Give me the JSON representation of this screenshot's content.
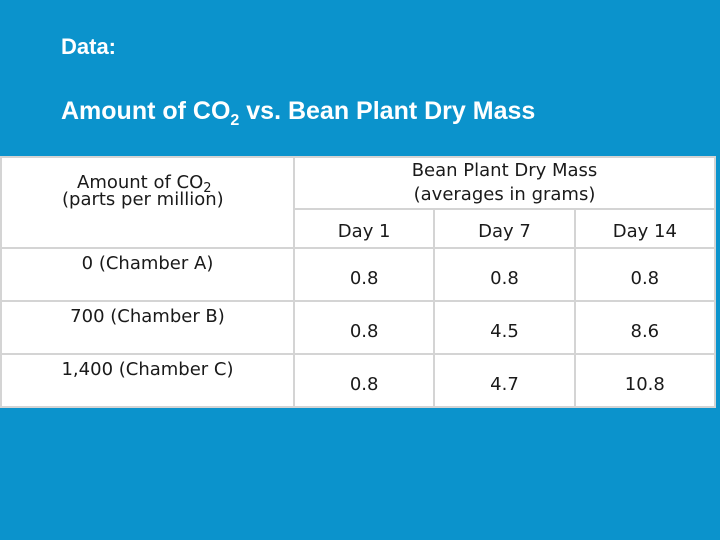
{
  "slide": {
    "label": "Data:",
    "title_prefix": "Amount of CO",
    "title_sub": "2",
    "title_suffix": " vs. Bean Plant Dry Mass"
  },
  "table": {
    "left_header_line1_prefix": "Amount of CO",
    "left_header_line1_sub": "2",
    "left_header_line2": "(parts per million)",
    "right_header_line1": "Bean Plant Dry Mass",
    "right_header_line2": "(averages in grams)",
    "days": [
      "Day 1",
      "Day 7",
      "Day 14"
    ],
    "rows": [
      {
        "label": "0 (Chamber A)",
        "values": [
          "0.8",
          "0.8",
          "0.8"
        ]
      },
      {
        "label": "700 (Chamber B)",
        "values": [
          "0.8",
          "4.5",
          "8.6"
        ]
      },
      {
        "label": "1,400 (Chamber C)",
        "values": [
          "0.8",
          "4.7",
          "10.8"
        ]
      }
    ]
  },
  "colors": {
    "background": "#0b93cc",
    "table_background": "#ffffff",
    "grid": "#d4d4d4"
  }
}
